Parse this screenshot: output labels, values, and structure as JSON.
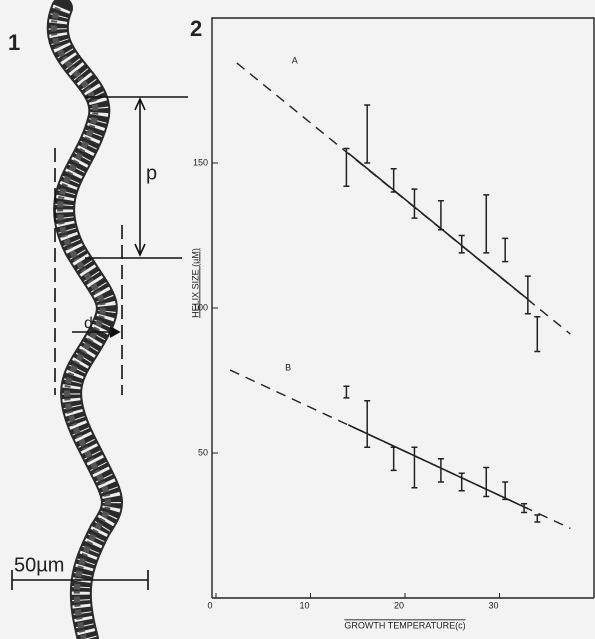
{
  "panel_1": {
    "label": "1",
    "pitch_label": "p",
    "diameter_label": "d",
    "scale_label": "50µm"
  },
  "chart_data": {
    "type": "errorbar",
    "panel_label": "2",
    "xlabel": "GROWTH TEMPERATURE(c)",
    "ylabel": "HELIX SIZE (µM)",
    "xlim": [
      0,
      40
    ],
    "ylim": [
      0,
      200
    ],
    "xticks": [
      0,
      10,
      20,
      30
    ],
    "yticks": [
      50,
      100,
      150
    ],
    "color": "#222222",
    "series": [
      {
        "name": "A",
        "x": [
          13.8,
          16,
          18.8,
          21,
          23.8,
          26,
          28.6,
          30.6,
          33,
          34
        ],
        "values": [
          148.5,
          160,
          144,
          136,
          132,
          122,
          129,
          120,
          104.5,
          91
        ],
        "errors": [
          6.5,
          10,
          4,
          5,
          5,
          3,
          10,
          4,
          6.5,
          6
        ],
        "fit_x": [
          2.2,
          37.5
        ],
        "fit": [
          184.5,
          91
        ],
        "fit_solid_x": [
          14,
          33
        ],
        "fit_solid": [
          153.4,
          103
        ]
      },
      {
        "name": "B",
        "x": [
          13.8,
          16,
          18.8,
          21,
          23.8,
          26,
          28.6,
          30.6,
          32.6,
          34
        ],
        "values": [
          71,
          60,
          48,
          45,
          44,
          40,
          40,
          37,
          31,
          27.4
        ],
        "errors": [
          2,
          8,
          4,
          7,
          4,
          3,
          5,
          3,
          1.5,
          1.2
        ],
        "fit_x": [
          1.5,
          37.5
        ],
        "fit": [
          78.6,
          24
        ],
        "fit_solid_x": [
          14,
          33
        ],
        "fit_solid": [
          59.7,
          30.8
        ]
      }
    ]
  }
}
